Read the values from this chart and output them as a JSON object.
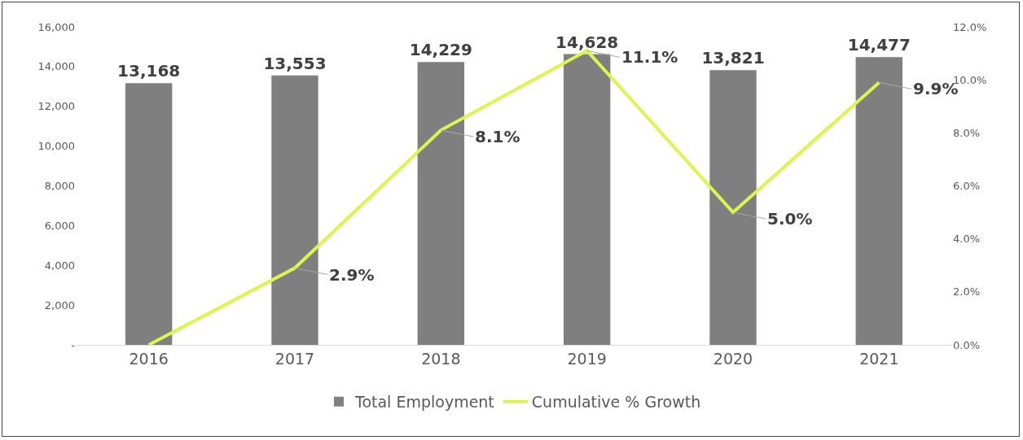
{
  "chart_data": {
    "type": "bar",
    "categories": [
      "2016",
      "2017",
      "2018",
      "2019",
      "2020",
      "2021"
    ],
    "series": [
      {
        "name": "Total Employment",
        "color": "#7f7f7f",
        "values": [
          13168,
          13553,
          14229,
          14628,
          13821,
          14477
        ],
        "value_labels": [
          "13,168",
          "13,553",
          "14,229",
          "14,628",
          "13,821",
          "14,477"
        ]
      },
      {
        "name": "Cumulative % Growth",
        "type": "line",
        "axis": "y2",
        "color": "#dcf64e",
        "values": [
          0,
          2.9,
          8.1,
          11.1,
          5.0,
          9.9
        ],
        "value_labels": [
          null,
          "2.9%",
          "8.1%",
          "11.1%",
          "5.0%",
          "9.9%"
        ],
        "marker": "none",
        "line_style": "solid"
      }
    ],
    "ylim": [
      0,
      16000
    ],
    "yticks": [
      {
        "value": 0,
        "label": "-"
      },
      {
        "value": 2000,
        "label": "2,000"
      },
      {
        "value": 4000,
        "label": "4,000"
      },
      {
        "value": 6000,
        "label": "6,000"
      },
      {
        "value": 8000,
        "label": "8,000"
      },
      {
        "value": 10000,
        "label": "10,000"
      },
      {
        "value": 12000,
        "label": "12,000"
      },
      {
        "value": 14000,
        "label": "14,000"
      },
      {
        "value": 16000,
        "label": "16,000"
      }
    ],
    "y2lim": [
      0,
      12
    ],
    "y2ticks": [
      {
        "value": 0,
        "label": "0.0%"
      },
      {
        "value": 2,
        "label": "2.0%"
      },
      {
        "value": 4,
        "label": "4.0%"
      },
      {
        "value": 6,
        "label": "6.0%"
      },
      {
        "value": 8,
        "label": "8.0%"
      },
      {
        "value": 10,
        "label": "10.0%"
      },
      {
        "value": 12,
        "label": "12.0%"
      }
    ],
    "grid": false,
    "legend": "bottom"
  }
}
